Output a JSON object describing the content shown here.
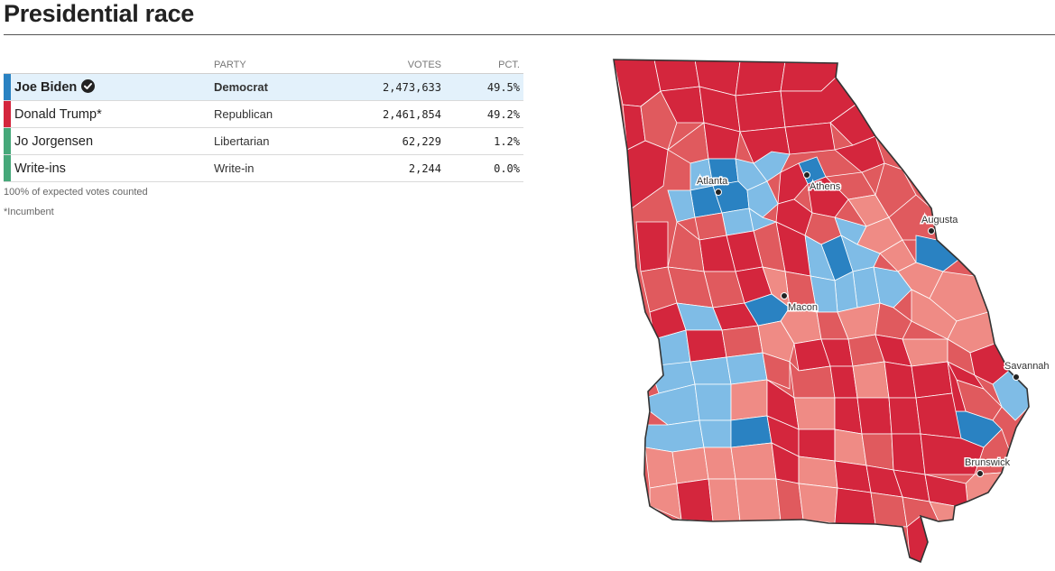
{
  "header": {
    "title": "Presidential race"
  },
  "table": {
    "columns": {
      "party": "PARTY",
      "votes": "VOTES",
      "pct": "PCT."
    },
    "rows": [
      {
        "name": "Joe Biden",
        "party": "Democrat",
        "votes": "2,473,633",
        "pct": "49.5%",
        "color": "#2a82c2",
        "winner": true
      },
      {
        "name": "Donald Trump*",
        "party": "Republican",
        "votes": "2,461,854",
        "pct": "49.2%",
        "color": "#d4263d",
        "winner": false
      },
      {
        "name": "Jo Jorgensen",
        "party": "Libertarian",
        "votes": "62,229",
        "pct": "1.2%",
        "color": "#46a87a",
        "winner": false
      },
      {
        "name": "Write-ins",
        "party": "Write-in",
        "votes": "2,244",
        "pct": "0.0%",
        "color": "#46a87a",
        "winner": false
      }
    ]
  },
  "notes": {
    "counted": "100% of expected votes counted",
    "incumbent": "*Incumbent"
  },
  "map": {
    "cities": [
      "Atlanta",
      "Athens",
      "Augusta",
      "Macon",
      "Savannah",
      "Brunswick"
    ],
    "colors": {
      "dem_strong": "#2a82c2",
      "dem_light": "#7fbce6",
      "rep_strong": "#d4263d",
      "rep_medium": "#e05a5e",
      "rep_light": "#ef8b85"
    }
  }
}
